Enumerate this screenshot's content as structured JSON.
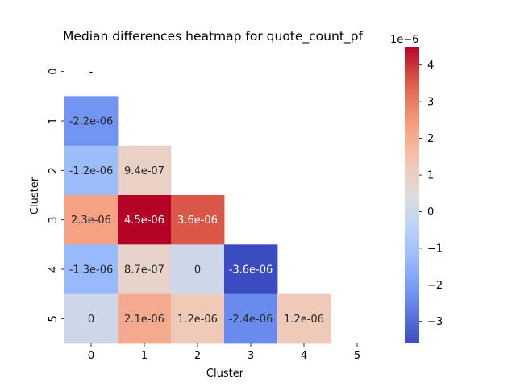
{
  "chart_data": {
    "type": "heatmap",
    "title": "Median differences heatmap for quote_count_pf",
    "xlabel": "Cluster",
    "ylabel": "Cluster",
    "x_categories": [
      "0",
      "1",
      "2",
      "3",
      "4",
      "5"
    ],
    "y_categories": [
      "0",
      "1",
      "2",
      "3",
      "4",
      "5"
    ],
    "cells": [
      {
        "row": 1,
        "col": 0,
        "value": -2.2e-06,
        "label": "-2.2e-06"
      },
      {
        "row": 2,
        "col": 0,
        "value": -1.2e-06,
        "label": "-1.2e-06"
      },
      {
        "row": 2,
        "col": 1,
        "value": 9.4e-07,
        "label": "9.4e-07"
      },
      {
        "row": 3,
        "col": 0,
        "value": 2.3e-06,
        "label": "2.3e-06"
      },
      {
        "row": 3,
        "col": 1,
        "value": 4.5e-06,
        "label": "4.5e-06"
      },
      {
        "row": 3,
        "col": 2,
        "value": 3.6e-06,
        "label": "3.6e-06"
      },
      {
        "row": 4,
        "col": 0,
        "value": -1.3e-06,
        "label": "-1.3e-06"
      },
      {
        "row": 4,
        "col": 1,
        "value": 8.7e-07,
        "label": "8.7e-07"
      },
      {
        "row": 4,
        "col": 2,
        "value": 0,
        "label": "0"
      },
      {
        "row": 4,
        "col": 3,
        "value": -3.6e-06,
        "label": "-3.6e-06"
      },
      {
        "row": 5,
        "col": 0,
        "value": 0,
        "label": "0"
      },
      {
        "row": 5,
        "col": 1,
        "value": 2.1e-06,
        "label": "2.1e-06"
      },
      {
        "row": 5,
        "col": 2,
        "value": 1.2e-06,
        "label": "1.2e-06"
      },
      {
        "row": 5,
        "col": 3,
        "value": -2.4e-06,
        "label": "-2.4e-06"
      },
      {
        "row": 5,
        "col": 4,
        "value": 1.2e-06,
        "label": "1.2e-06"
      }
    ],
    "masked": "upper triangle including diagonal",
    "colormap": "coolwarm",
    "vmin": -3.6e-06,
    "vmax": 4.5e-06,
    "colorbar": {
      "ticks": [
        -3,
        -2,
        -1,
        0,
        1,
        2,
        3,
        4
      ],
      "tick_labels": [
        "−3",
        "−2",
        "−1",
        "0",
        "1",
        "2",
        "3",
        "4"
      ],
      "multiplier": "1e−6",
      "scale": 1e-06
    },
    "grid": false,
    "legend": "none"
  }
}
